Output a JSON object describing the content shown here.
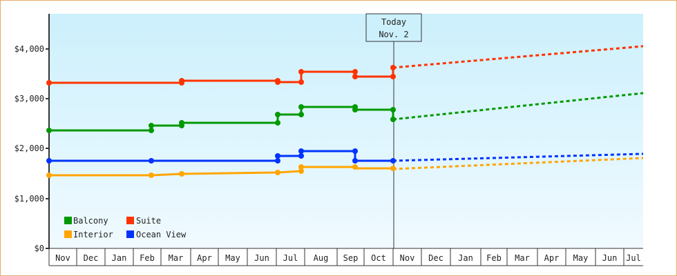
{
  "chart_data": {
    "type": "line",
    "title": "",
    "xlabel": "",
    "ylabel": "",
    "ylim": [
      0,
      4600
    ],
    "y_ticks": [
      "$0",
      "$1,000",
      "$2,000",
      "$3,000",
      "$4,000"
    ],
    "y_tick_values": [
      0,
      1000,
      2000,
      3000,
      4000
    ],
    "x_tick_labels": [
      "Nov",
      "Dec",
      "Jan",
      "Feb",
      "Mar",
      "Apr",
      "May",
      "Jun",
      "Jul",
      "Aug",
      "Sep",
      "Oct",
      "Nov",
      "Dec",
      "Jan",
      "Feb",
      "Mar",
      "Apr",
      "May",
      "Jun",
      "Jul"
    ],
    "today_marker": {
      "line1": "Today",
      "line2": "Nov. 2"
    },
    "legend": [
      {
        "name": "Balcony",
        "color": "#009900"
      },
      {
        "name": "Suite",
        "color": "#ff3300"
      },
      {
        "name": "Interior",
        "color": "#ffa500"
      },
      {
        "name": "Ocean View",
        "color": "#0033ff"
      }
    ],
    "legend_position": "lower-left",
    "grid": false,
    "series": [
      {
        "name": "Suite",
        "color": "#ff3300",
        "history": [
          [
            "Nov",
            3310
          ],
          [
            "Mar",
            3310
          ],
          [
            "Mar",
            3350
          ],
          [
            "Jul",
            3350
          ],
          [
            "Jul",
            3330
          ],
          [
            "Jul",
            3330
          ],
          [
            "Jul",
            3530
          ],
          [
            "Sep",
            3530
          ],
          [
            "Sep",
            3440
          ],
          [
            "Nov",
            3440
          ],
          [
            "Nov",
            3620
          ]
        ],
        "forecast": [
          [
            "Nov",
            3620
          ],
          [
            "Jul",
            4050
          ]
        ]
      },
      {
        "name": "Balcony",
        "color": "#009900",
        "history": [
          [
            "Nov",
            2360
          ],
          [
            "Feb",
            2360
          ],
          [
            "Feb",
            2460
          ],
          [
            "Mar",
            2460
          ],
          [
            "Mar",
            2510
          ],
          [
            "Jul",
            2510
          ],
          [
            "Jul",
            2690
          ],
          [
            "Jul",
            2690
          ],
          [
            "Jul",
            2840
          ],
          [
            "Sep",
            2840
          ],
          [
            "Sep",
            2780
          ],
          [
            "Nov",
            2780
          ],
          [
            "Nov",
            2590
          ]
        ],
        "forecast": [
          [
            "Nov",
            2590
          ],
          [
            "Jul",
            3110
          ]
        ]
      },
      {
        "name": "Ocean View",
        "color": "#0033ff",
        "history": [
          [
            "Nov",
            1760
          ],
          [
            "Feb",
            1760
          ],
          [
            "Jul",
            1760
          ],
          [
            "Jul",
            1850
          ],
          [
            "Jul",
            1850
          ],
          [
            "Jul",
            1950
          ],
          [
            "Sep",
            1950
          ],
          [
            "Sep",
            1760
          ],
          [
            "Nov",
            1760
          ]
        ],
        "forecast": [
          [
            "Nov",
            1760
          ],
          [
            "Jul",
            1900
          ]
        ]
      },
      {
        "name": "Interior",
        "color": "#ffa500",
        "history": [
          [
            "Nov",
            1470
          ],
          [
            "Feb",
            1470
          ],
          [
            "Mar",
            1490
          ],
          [
            "Jul",
            1520
          ],
          [
            "Jul",
            1550
          ],
          [
            "Jul",
            1640
          ],
          [
            "Sep",
            1610
          ],
          [
            "Nov",
            1600
          ]
        ],
        "forecast": [
          [
            "Nov",
            1600
          ],
          [
            "Jul",
            1820
          ]
        ]
      }
    ]
  }
}
